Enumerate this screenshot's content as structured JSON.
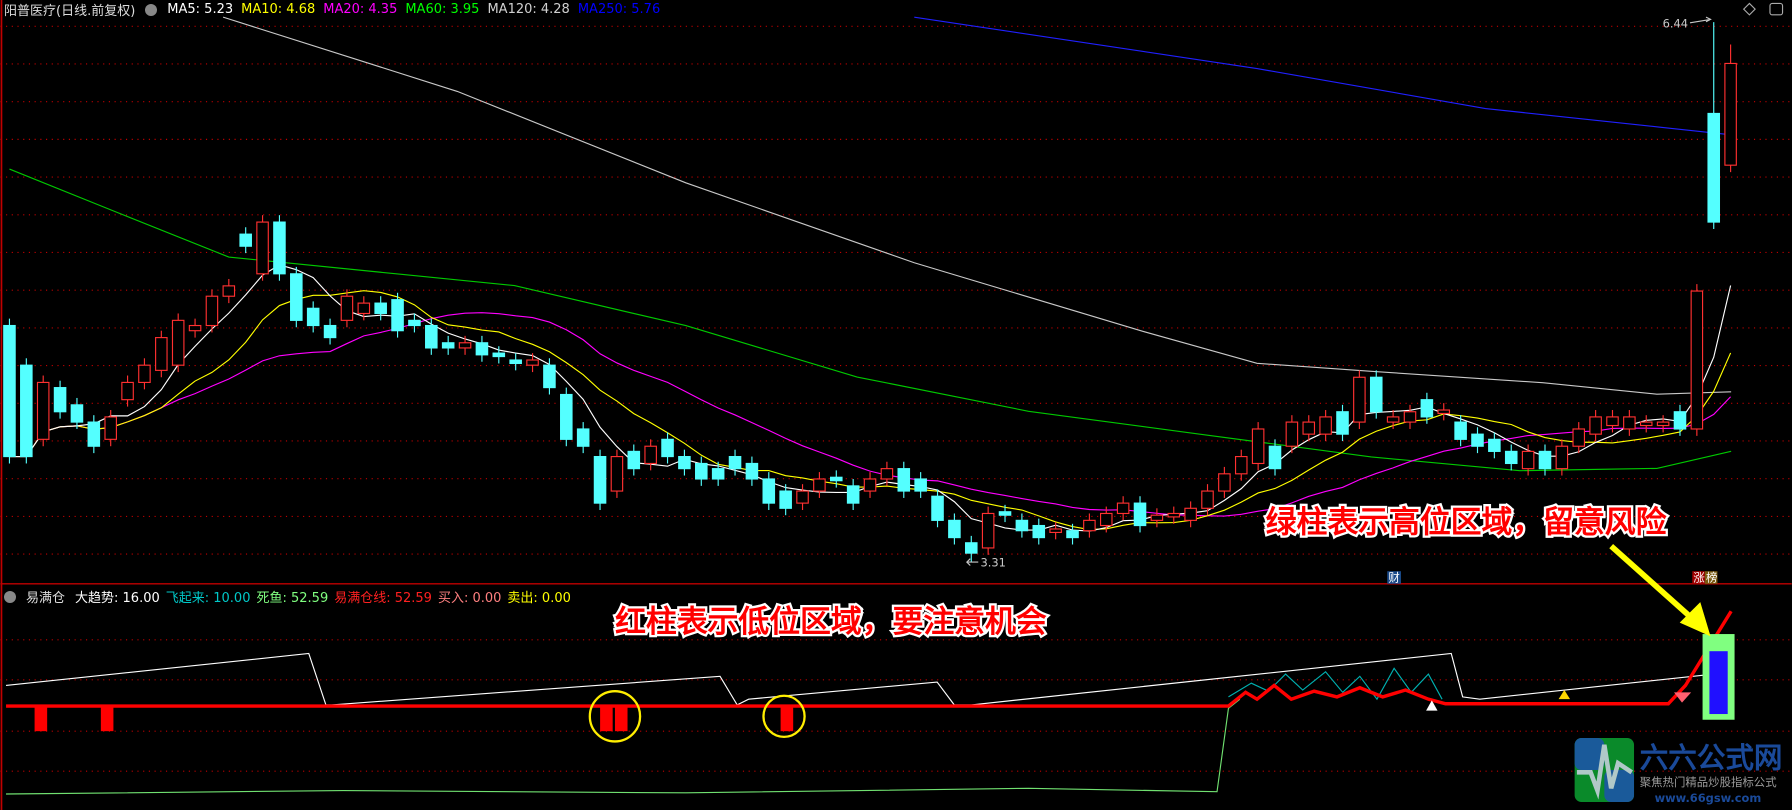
{
  "main_header": {
    "title": "阳普医疗(日线.前复权)",
    "ma": [
      {
        "label": "MA5: 5.23",
        "color": "#ffffff"
      },
      {
        "label": "MA10: 4.68",
        "color": "#ffff00"
      },
      {
        "label": "MA20: 4.35",
        "color": "#ff00ff"
      },
      {
        "label": "MA60: 3.95",
        "color": "#00ff00"
      },
      {
        "label": "MA120: 4.28",
        "color": "#d0d0d0"
      },
      {
        "label": "MA250: 5.76",
        "color": "#0000ff"
      }
    ]
  },
  "indicator_header": {
    "name": "易满仓",
    "items": [
      {
        "label": "大趋势: 16.00",
        "color": "#ffffff"
      },
      {
        "label": "飞起来: 10.00",
        "color": "#00c8c8"
      },
      {
        "label": "死鱼: 52.59",
        "color": "#80ff80"
      },
      {
        "label": "易满仓线: 52.59",
        "color": "#ff2020"
      },
      {
        "label": "买入: 0.00",
        "color": "#ff8080"
      },
      {
        "label": "卖出: 0.00",
        "color": "#ffff00"
      }
    ]
  },
  "markers": {
    "high": "6.44",
    "low": "3.31",
    "cai": "财",
    "zhang": "涨",
    "bang": "榜"
  },
  "annotations": {
    "red_note": "红柱表示低位区域，要注意机会",
    "green_note": "绿柱表示高位区域，留意风险"
  },
  "logo": {
    "name": "六六公式网",
    "slogan": "聚焦热门精品炒股指标公式",
    "url": "www.66gsw.com"
  },
  "colors": {
    "up": "#ff3030",
    "down": "#54ffff",
    "grid": "#c00000"
  },
  "chart_data": {
    "type": "candlestick",
    "price_range": [
      3.31,
      6.44
    ],
    "candles_open_close": [
      [
        4.68,
        3.92
      ],
      [
        4.45,
        3.92
      ],
      [
        4.02,
        4.35
      ],
      [
        4.32,
        4.18
      ],
      [
        4.22,
        4.12
      ],
      [
        4.12,
        3.98
      ],
      [
        4.02,
        4.15
      ],
      [
        4.25,
        4.35
      ],
      [
        4.35,
        4.45
      ],
      [
        4.42,
        4.61
      ],
      [
        4.45,
        4.71
      ],
      [
        4.65,
        4.68
      ],
      [
        4.68,
        4.85
      ],
      [
        4.85,
        4.91
      ],
      [
        5.21,
        5.14
      ],
      [
        4.98,
        5.28
      ],
      [
        5.28,
        4.98
      ],
      [
        4.98,
        4.71
      ],
      [
        4.78,
        4.68
      ],
      [
        4.68,
        4.61
      ],
      [
        4.71,
        4.85
      ],
      [
        4.75,
        4.81
      ],
      [
        4.81,
        4.75
      ],
      [
        4.83,
        4.65
      ],
      [
        4.71,
        4.68
      ],
      [
        4.68,
        4.55
      ],
      [
        4.58,
        4.55
      ],
      [
        4.55,
        4.58
      ],
      [
        4.58,
        4.51
      ],
      [
        4.52,
        4.5
      ],
      [
        4.48,
        4.46
      ],
      [
        4.45,
        4.48
      ],
      [
        4.45,
        4.32
      ],
      [
        4.28,
        4.02
      ],
      [
        4.08,
        3.98
      ],
      [
        3.92,
        3.65
      ],
      [
        3.72,
        3.92
      ],
      [
        3.95,
        3.85
      ],
      [
        3.88,
        3.98
      ],
      [
        4.02,
        3.92
      ],
      [
        3.92,
        3.85
      ],
      [
        3.88,
        3.79
      ],
      [
        3.85,
        3.79
      ],
      [
        3.92,
        3.85
      ],
      [
        3.88,
        3.79
      ],
      [
        3.79,
        3.65
      ],
      [
        3.72,
        3.62
      ],
      [
        3.65,
        3.72
      ],
      [
        3.72,
        3.79
      ],
      [
        3.8,
        3.78
      ],
      [
        3.75,
        3.65
      ],
      [
        3.72,
        3.79
      ],
      [
        3.79,
        3.85
      ],
      [
        3.85,
        3.72
      ],
      [
        3.79,
        3.72
      ],
      [
        3.69,
        3.55
      ],
      [
        3.55,
        3.45
      ],
      [
        3.42,
        3.36
      ],
      [
        3.39,
        3.59
      ],
      [
        3.6,
        3.58
      ],
      [
        3.55,
        3.49
      ],
      [
        3.52,
        3.45
      ],
      [
        3.48,
        3.5
      ],
      [
        3.49,
        3.45
      ],
      [
        3.49,
        3.55
      ],
      [
        3.52,
        3.59
      ],
      [
        3.59,
        3.65
      ],
      [
        3.65,
        3.52
      ],
      [
        3.55,
        3.58
      ],
      [
        3.57,
        3.59
      ],
      [
        3.55,
        3.62
      ],
      [
        3.62,
        3.72
      ],
      [
        3.72,
        3.82
      ],
      [
        3.82,
        3.92
      ],
      [
        3.88,
        4.08
      ],
      [
        3.98,
        3.85
      ],
      [
        3.98,
        4.12
      ],
      [
        4.05,
        4.12
      ],
      [
        4.05,
        4.15
      ],
      [
        4.18,
        4.05
      ],
      [
        4.12,
        4.38
      ],
      [
        4.38,
        4.18
      ],
      [
        4.12,
        4.15
      ],
      [
        4.12,
        4.18
      ],
      [
        4.25,
        4.15
      ],
      [
        4.17,
        4.19
      ],
      [
        4.12,
        4.02
      ],
      [
        4.05,
        3.98
      ],
      [
        4.02,
        3.95
      ],
      [
        3.95,
        3.88
      ],
      [
        3.85,
        3.95
      ],
      [
        3.95,
        3.85
      ],
      [
        3.85,
        3.98
      ],
      [
        3.98,
        4.08
      ],
      [
        4.05,
        4.15
      ],
      [
        4.1,
        4.15
      ],
      [
        4.08,
        4.15
      ],
      [
        4.1,
        4.12
      ],
      [
        4.1,
        4.12
      ],
      [
        4.18,
        4.08
      ],
      [
        4.08,
        4.88
      ],
      [
        5.91,
        5.28
      ],
      [
        5.61,
        6.2
      ]
    ]
  }
}
